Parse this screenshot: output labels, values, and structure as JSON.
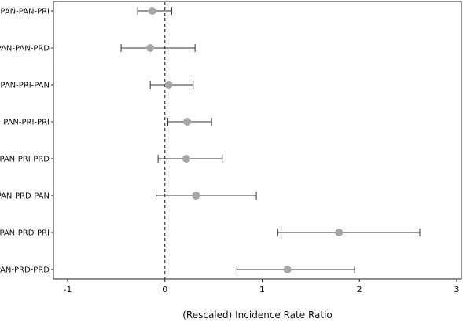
{
  "chart_data": {
    "type": "scatter",
    "subtype": "forest-plot",
    "title": "",
    "xlabel": "(Rescaled) Incidence Rate Ratio",
    "ylabel": "",
    "xlim": [
      -1,
      3
    ],
    "xticks": [
      -1,
      0,
      1,
      2,
      3
    ],
    "xtick_labels": [
      "-1",
      "0",
      "1",
      "2",
      "3"
    ],
    "reference_line": {
      "x": 0,
      "style": "dashed"
    },
    "grid": false,
    "legend": "none",
    "categories": [
      "PAN-PAN-PRI",
      "PAN-PAN-PRD",
      "PAN-PRI-PAN",
      "PAN-PRI-PRI",
      "PAN-PRI-PRD",
      "PAN-PRD-PAN",
      "PAN-PRD-PRI",
      "PAN-PRD-PRD"
    ],
    "estimates": [
      -0.13,
      -0.15,
      0.04,
      0.23,
      0.22,
      0.32,
      1.79,
      1.26
    ],
    "ci_lower": [
      -0.28,
      -0.45,
      -0.15,
      0.03,
      -0.07,
      -0.09,
      1.16,
      0.74
    ],
    "ci_upper": [
      0.07,
      0.31,
      0.29,
      0.48,
      0.59,
      0.94,
      2.62,
      1.95
    ],
    "colors": {
      "point": "#a6a6a6",
      "line": "#333333",
      "axis": "#222222",
      "reference": "#333333"
    }
  }
}
